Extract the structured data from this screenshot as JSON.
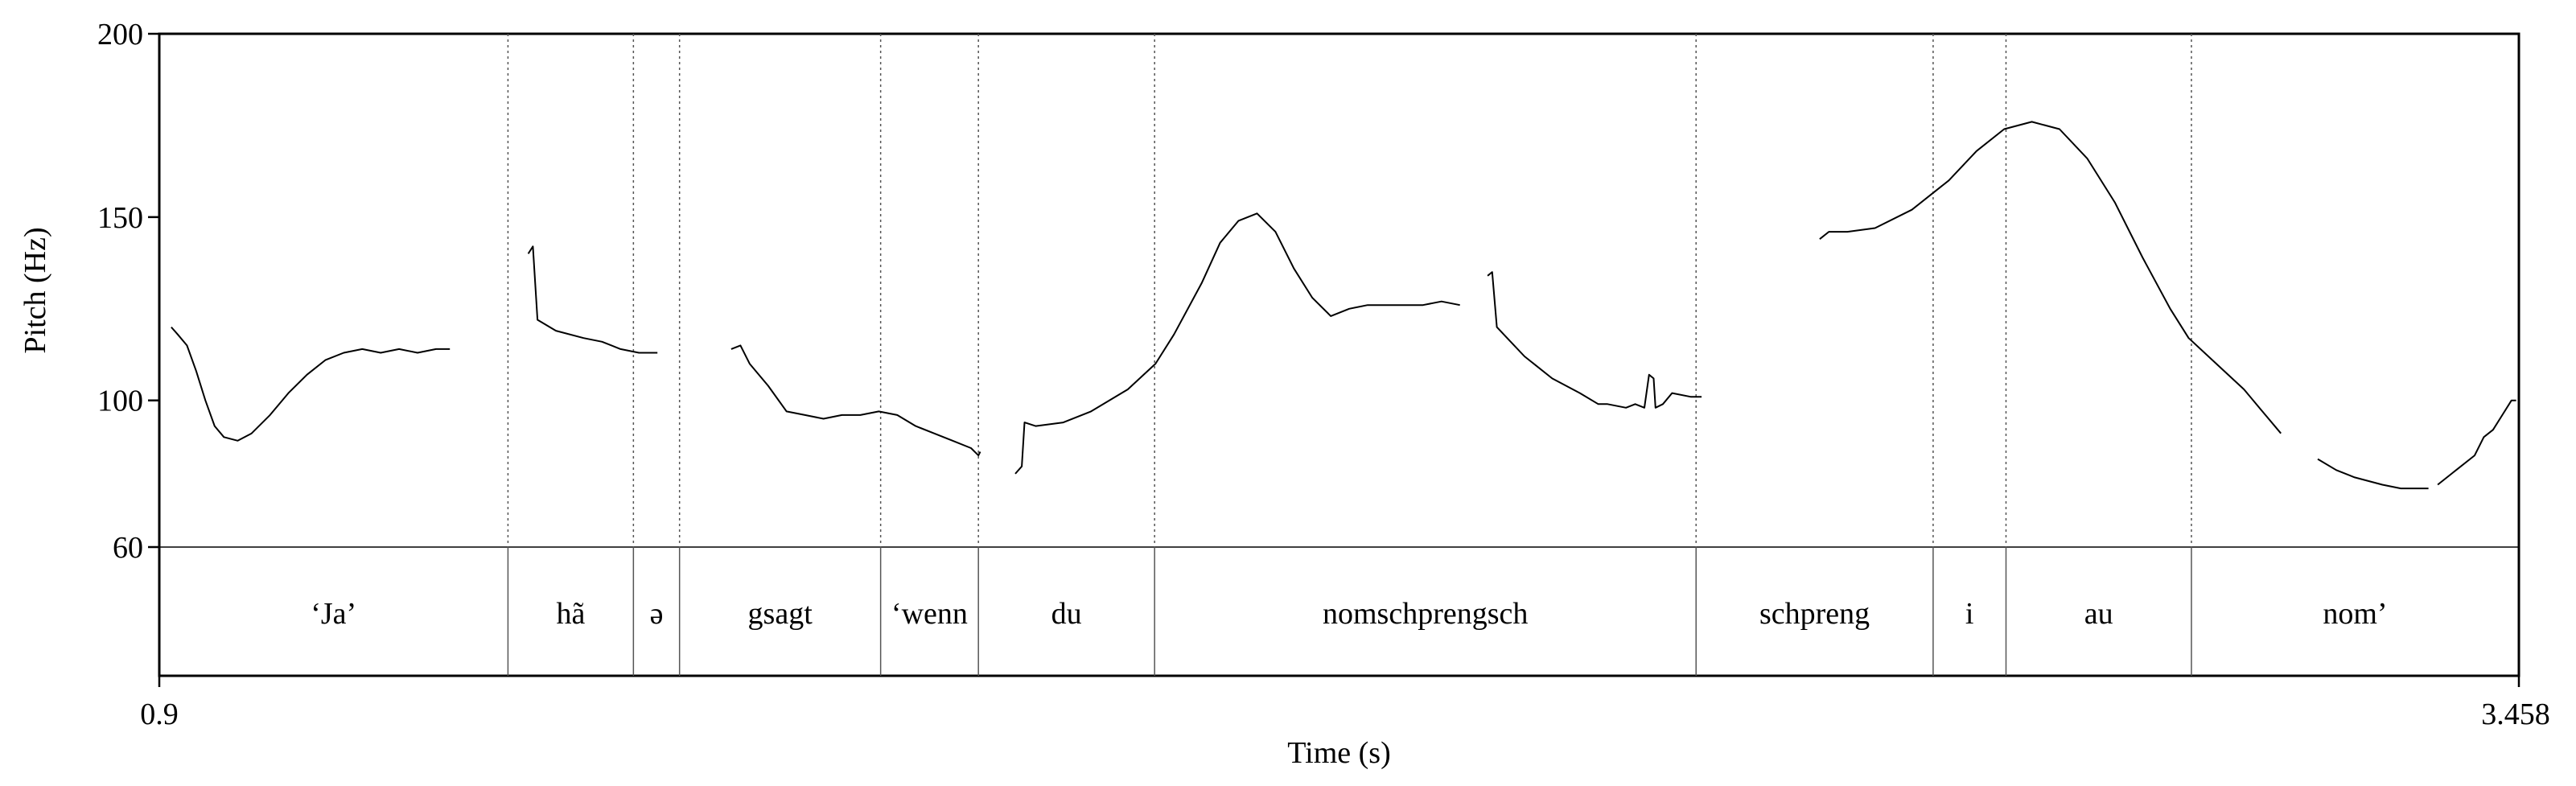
{
  "chart_data": {
    "type": "line",
    "xlabel": "Time (s)",
    "ylabel": "Pitch (Hz)",
    "xlim": [
      0.9,
      3.458
    ],
    "ylim": [
      60,
      200
    ],
    "x_tick_labels": [
      "0.9",
      "3.458"
    ],
    "y_ticks": [
      {
        "value": 60,
        "label": "60"
      },
      {
        "value": 100,
        "label": "100"
      },
      {
        "value": 150,
        "label": "150"
      },
      {
        "value": 200,
        "label": "200"
      }
    ],
    "boundaries": [
      1.278,
      1.414,
      1.464,
      1.682,
      1.788,
      1.979,
      2.566,
      2.823,
      2.902,
      3.103
    ],
    "segments": [
      {
        "label": "‘Ja’",
        "start": 0.9,
        "end": 1.278
      },
      {
        "label": "hã",
        "start": 1.278,
        "end": 1.414
      },
      {
        "label": "ə",
        "start": 1.414,
        "end": 1.464
      },
      {
        "label": "gsagt",
        "start": 1.464,
        "end": 1.682
      },
      {
        "label": "‘wenn",
        "start": 1.682,
        "end": 1.788
      },
      {
        "label": "du",
        "start": 1.788,
        "end": 1.979
      },
      {
        "label": "nomschprengsch",
        "start": 1.979,
        "end": 2.566
      },
      {
        "label": "schpreng",
        "start": 2.566,
        "end": 2.823
      },
      {
        "label": "i",
        "start": 2.823,
        "end": 2.902
      },
      {
        "label": "au",
        "start": 2.902,
        "end": 3.103
      },
      {
        "label": "nom’",
        "start": 3.103,
        "end": 3.458
      }
    ],
    "series": [
      {
        "points": [
          [
            0.913,
            120
          ],
          [
            0.92,
            118
          ],
          [
            0.93,
            115
          ],
          [
            0.94,
            108
          ],
          [
            0.95,
            100
          ],
          [
            0.96,
            93
          ],
          [
            0.97,
            90
          ],
          [
            0.985,
            89
          ],
          [
            1.0,
            91
          ],
          [
            1.02,
            96
          ],
          [
            1.04,
            102
          ],
          [
            1.06,
            107
          ],
          [
            1.08,
            111
          ],
          [
            1.1,
            113
          ],
          [
            1.12,
            114
          ],
          [
            1.14,
            113
          ],
          [
            1.16,
            114
          ],
          [
            1.18,
            113
          ],
          [
            1.2,
            114
          ],
          [
            1.215,
            114
          ]
        ]
      },
      {
        "points": [
          [
            1.3,
            140
          ],
          [
            1.305,
            142
          ],
          [
            1.31,
            122
          ],
          [
            1.33,
            119
          ],
          [
            1.36,
            117
          ],
          [
            1.38,
            116
          ],
          [
            1.4,
            114
          ],
          [
            1.42,
            113
          ],
          [
            1.44,
            113
          ]
        ]
      },
      {
        "points": [
          [
            1.52,
            114
          ],
          [
            1.53,
            115
          ],
          [
            1.54,
            110
          ],
          [
            1.56,
            104
          ],
          [
            1.58,
            97
          ],
          [
            1.6,
            96
          ],
          [
            1.62,
            95
          ],
          [
            1.64,
            96
          ],
          [
            1.66,
            96
          ],
          [
            1.68,
            97
          ],
          [
            1.7,
            96
          ],
          [
            1.72,
            93
          ],
          [
            1.74,
            91
          ],
          [
            1.76,
            89
          ],
          [
            1.78,
            87
          ],
          [
            1.788,
            85
          ],
          [
            1.79,
            86
          ]
        ]
      },
      {
        "points": [
          [
            1.828,
            80
          ],
          [
            1.835,
            82
          ],
          [
            1.838,
            94
          ],
          [
            1.85,
            93
          ],
          [
            1.88,
            94
          ],
          [
            1.91,
            97
          ],
          [
            1.95,
            103
          ],
          [
            1.98,
            110
          ],
          [
            2.0,
            118
          ],
          [
            2.03,
            132
          ],
          [
            2.05,
            143
          ],
          [
            2.07,
            149
          ],
          [
            2.09,
            151
          ],
          [
            2.11,
            146
          ],
          [
            2.13,
            136
          ],
          [
            2.15,
            128
          ],
          [
            2.17,
            123
          ],
          [
            2.19,
            125
          ],
          [
            2.21,
            126
          ],
          [
            2.24,
            126
          ],
          [
            2.27,
            126
          ],
          [
            2.29,
            127
          ],
          [
            2.31,
            126
          ]
        ]
      },
      {
        "points": [
          [
            2.34,
            134
          ],
          [
            2.345,
            135
          ],
          [
            2.35,
            120
          ],
          [
            2.365,
            116
          ],
          [
            2.38,
            112
          ],
          [
            2.41,
            106
          ],
          [
            2.44,
            102
          ],
          [
            2.46,
            99
          ],
          [
            2.47,
            99
          ],
          [
            2.49,
            98
          ],
          [
            2.5,
            99
          ],
          [
            2.51,
            98
          ],
          [
            2.515,
            107
          ],
          [
            2.52,
            106
          ],
          [
            2.522,
            98
          ],
          [
            2.53,
            99
          ],
          [
            2.54,
            102
          ],
          [
            2.56,
            101
          ],
          [
            2.572,
            101
          ]
        ]
      },
      {
        "points": [
          [
            2.7,
            144
          ],
          [
            2.71,
            146
          ],
          [
            2.73,
            146
          ],
          [
            2.76,
            147
          ],
          [
            2.8,
            152
          ],
          [
            2.84,
            160
          ],
          [
            2.87,
            168
          ],
          [
            2.9,
            174
          ],
          [
            2.93,
            176
          ],
          [
            2.96,
            174
          ],
          [
            2.99,
            166
          ],
          [
            3.02,
            154
          ],
          [
            3.05,
            139
          ],
          [
            3.08,
            125
          ],
          [
            3.1,
            117
          ],
          [
            3.13,
            110
          ],
          [
            3.16,
            103
          ],
          [
            3.18,
            97
          ],
          [
            3.2,
            91
          ]
        ]
      },
      {
        "points": [
          [
            3.24,
            84
          ],
          [
            3.26,
            81
          ],
          [
            3.28,
            79
          ],
          [
            3.31,
            77
          ],
          [
            3.33,
            76
          ],
          [
            3.35,
            76
          ],
          [
            3.36,
            76
          ]
        ]
      },
      {
        "points": [
          [
            3.37,
            77
          ],
          [
            3.39,
            81
          ],
          [
            3.41,
            85
          ],
          [
            3.42,
            90
          ],
          [
            3.43,
            92
          ],
          [
            3.44,
            96
          ],
          [
            3.45,
            100
          ],
          [
            3.455,
            100
          ]
        ]
      }
    ]
  }
}
